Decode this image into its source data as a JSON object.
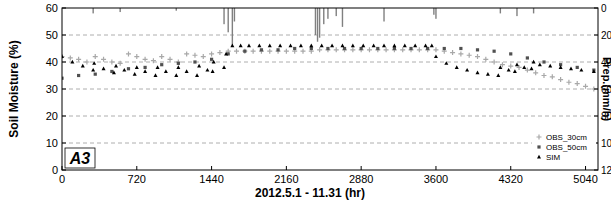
{
  "chart_data": {
    "type": "scatter",
    "x_label": "2012.5.1 - 11.31 (hr)",
    "y_label": "Soil Moisture (%)",
    "y2_label": "Prep.(mm/h)",
    "annotation": "A3",
    "xlim": [
      0,
      5160
    ],
    "xticks": [
      0,
      720,
      1440,
      2160,
      2880,
      3600,
      4320,
      5040
    ],
    "ylim": [
      0,
      60
    ],
    "yticks": [
      0,
      10,
      20,
      30,
      40,
      50,
      60
    ],
    "y2lim": [
      120,
      0
    ],
    "y2ticks": [
      0,
      20,
      40,
      60,
      80,
      100,
      120
    ],
    "grid": true,
    "legend": "lower right",
    "series": [
      {
        "name": "OBS_30cm",
        "color": "#a8a8a8",
        "marker": "plus",
        "x": [
          0,
          80,
          160,
          240,
          320,
          400,
          480,
          560,
          640,
          720,
          800,
          880,
          960,
          1040,
          1120,
          1200,
          1280,
          1360,
          1440,
          1520,
          1600,
          1680,
          1760,
          1840,
          1920,
          2000,
          2080,
          2160,
          2240,
          2320,
          2400,
          2480,
          2560,
          2640,
          2720,
          2800,
          2880,
          2960,
          3040,
          3120,
          3200,
          3280,
          3360,
          3440,
          3520,
          3600,
          3680,
          3760,
          3840,
          3920,
          4000,
          4080,
          4160,
          4240,
          4320,
          4400,
          4480,
          4560,
          4640,
          4720,
          4800,
          4880,
          4960,
          5040,
          5120
        ],
        "values": [
          42,
          41.5,
          41,
          40,
          42,
          41,
          40,
          39.5,
          43,
          42,
          41,
          40.5,
          42,
          41,
          40,
          43,
          42.5,
          42,
          43,
          43.5,
          44,
          44,
          44,
          44,
          44,
          44,
          44,
          44,
          44,
          44,
          44,
          44.5,
          44.5,
          44.5,
          44.5,
          44.5,
          44.5,
          44.5,
          44.5,
          44.5,
          44.5,
          44.5,
          44.5,
          44.5,
          44.5,
          44.5,
          44,
          43.5,
          43,
          42.5,
          42,
          41,
          40,
          39,
          38.5,
          38,
          37,
          36,
          35,
          34.5,
          33.5,
          32.5,
          32,
          31,
          30
        ]
      },
      {
        "name": "OBS_50cm",
        "color": "#505050",
        "marker": "square",
        "x": [
          0,
          160,
          320,
          480,
          640,
          800,
          960,
          1120,
          1280,
          1440,
          1600,
          1760,
          1920,
          2080,
          2240,
          2400,
          2560,
          2720,
          2880,
          3040,
          3200,
          3360,
          3520,
          3680,
          3840,
          4000,
          4160,
          4320,
          4480,
          4640,
          4800,
          4960,
          5120
        ],
        "values": [
          34,
          35,
          35.5,
          36.5,
          37.5,
          38,
          39,
          39.5,
          40,
          41,
          43,
          44,
          44.5,
          44.5,
          45,
          45,
          45,
          45,
          45,
          45,
          45,
          45,
          45,
          45,
          45,
          44.5,
          44,
          43,
          41.5,
          40,
          39,
          38,
          37
        ]
      },
      {
        "name": "SIM",
        "color": "#000000",
        "marker": "triangle",
        "x": [
          0,
          100,
          200,
          300,
          310,
          400,
          500,
          520,
          600,
          700,
          720,
          800,
          900,
          920,
          1000,
          1100,
          1120,
          1200,
          1300,
          1320,
          1400,
          1450,
          1460,
          1560,
          1580,
          1640,
          1720,
          1800,
          1900,
          2000,
          2100,
          2200,
          2300,
          2400,
          2500,
          2600,
          2700,
          2800,
          2900,
          3000,
          3100,
          3200,
          3300,
          3400,
          3500,
          3560,
          3600,
          3700,
          3800,
          3900,
          4000,
          4100,
          4200,
          4220,
          4300,
          4360,
          4380,
          4450,
          4520,
          4540,
          4600,
          4700,
          4800,
          4900,
          5000,
          5120
        ],
        "values": [
          42,
          40,
          38.5,
          37,
          39.5,
          37.5,
          36,
          38.5,
          37,
          35.5,
          38,
          36.5,
          35,
          38,
          36.5,
          35,
          38,
          36.5,
          35,
          38.5,
          37,
          36.5,
          40,
          38,
          43,
          46,
          46,
          46,
          46,
          46,
          46,
          46,
          46,
          46,
          46,
          46,
          46,
          46,
          46,
          46,
          46,
          46,
          46,
          46,
          46,
          46,
          42,
          39.5,
          38,
          37,
          36,
          35.5,
          35,
          38,
          37,
          36.5,
          39,
          38,
          37.5,
          40,
          39,
          38.5,
          38,
          37.5,
          37,
          36.5
        ]
      },
      {
        "name": "Prep.",
        "type": "bar",
        "axis": "y2",
        "color": "#808080",
        "x": [
          300,
          560,
          1100,
          1560,
          1600,
          1640,
          1660,
          2440,
          2460,
          2480,
          2520,
          2560,
          2640,
          2700,
          3100,
          3580,
          3600,
          4220,
          4380,
          4540
        ],
        "values": [
          4,
          3,
          2,
          12,
          18,
          28,
          10,
          20,
          25,
          22,
          12,
          8,
          6,
          14,
          10,
          5,
          8,
          4,
          6,
          4
        ]
      }
    ]
  }
}
